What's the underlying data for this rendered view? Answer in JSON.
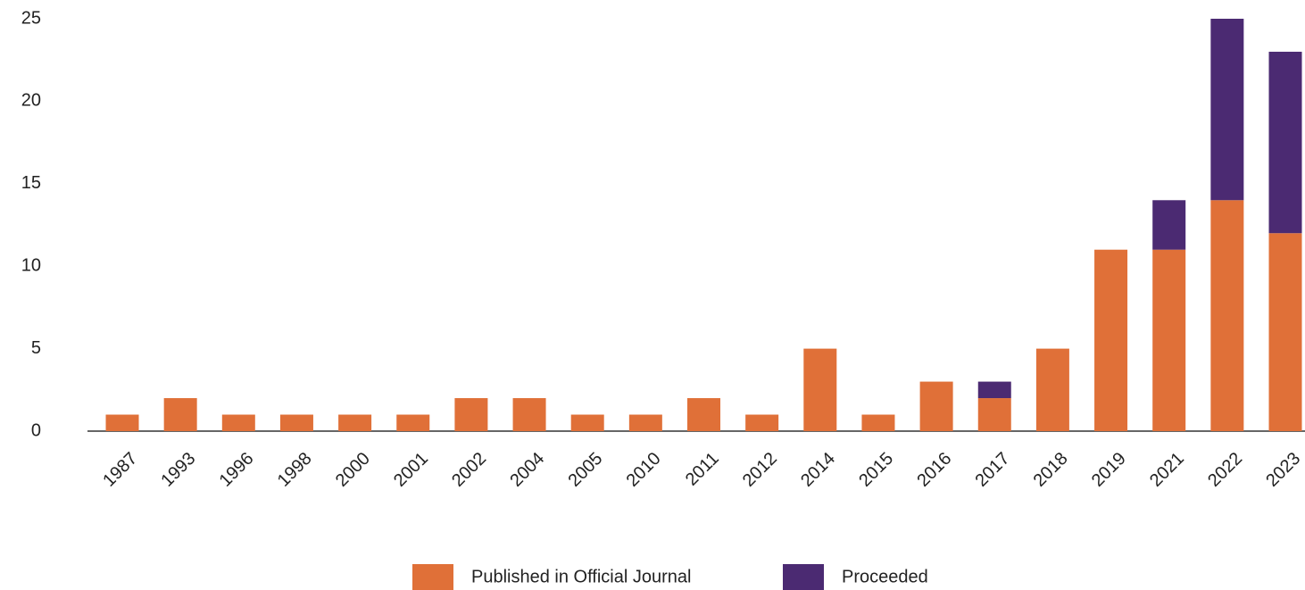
{
  "chart_data": {
    "type": "bar",
    "stacked": true,
    "categories": [
      "1987",
      "1993",
      "1996",
      "1998",
      "2000",
      "2001",
      "2002",
      "2004",
      "2005",
      "2010",
      "2011",
      "2012",
      "2014",
      "2015",
      "2016",
      "2017",
      "2018",
      "2019",
      "2021",
      "2022",
      "2023"
    ],
    "series": [
      {
        "name": "Published in Official Journal",
        "color": "#e07038",
        "values": [
          1,
          2,
          1,
          1,
          1,
          1,
          2,
          2,
          1,
          1,
          2,
          1,
          5,
          1,
          3,
          2,
          5,
          11,
          11,
          14,
          12
        ]
      },
      {
        "name": "Proceeded",
        "color": "#4b2a72",
        "values": [
          0,
          0,
          0,
          0,
          0,
          0,
          0,
          0,
          0,
          0,
          0,
          0,
          0,
          0,
          0,
          1,
          0,
          0,
          3,
          11,
          11
        ]
      }
    ],
    "ylim": [
      0,
      25
    ],
    "yticks": [
      0,
      5,
      10,
      15,
      20,
      25
    ],
    "grid": false,
    "legend": "bottom"
  }
}
